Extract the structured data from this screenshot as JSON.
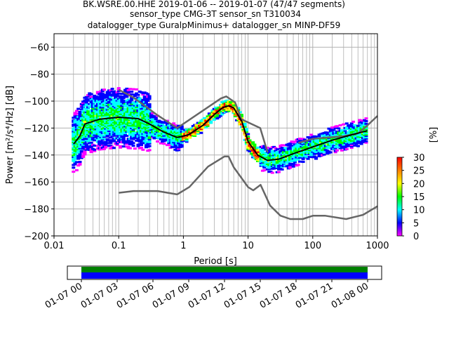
{
  "chart_data": {
    "type": "heatmap",
    "title_lines": [
      "BK.WSRE.00.HHE   2019-01-06 -- 2019-01-07  (47/47 segments)",
      "sensor_type CMG-3T sensor_sn T310034",
      "datalogger_type GuralpMinimus+ datalogger_sn MINP-DF59"
    ],
    "xlabel": "Period [s]",
    "ylabel": "Power [m²/s⁴/Hz] [dB]",
    "xscale": "log",
    "xlim": [
      0.01,
      1000
    ],
    "ylim": [
      -200,
      -50
    ],
    "x_tick_labels": [
      "0.01",
      "0.1",
      "1",
      "10",
      "100",
      "1000"
    ],
    "y_tick_labels": [
      "−200",
      "−180",
      "−160",
      "−140",
      "−120",
      "−100",
      "−80",
      "−60"
    ],
    "grid": true,
    "colorbar": {
      "label": "[%]",
      "range": [
        0,
        30
      ],
      "tick_labels": [
        "0",
        "5",
        "10",
        "15",
        "20",
        "25",
        "30"
      ],
      "colors": [
        "#ff00ff",
        "#0000ff",
        "#00ffff",
        "#00ff00",
        "#ffff00",
        "#ff7f00",
        "#ff0000"
      ]
    },
    "series": [
      {
        "name": "",
        "role": "noise-model-high",
        "color": "#666666",
        "x": [
          0.1,
          0.17,
          0.4,
          0.8,
          3.8,
          4.6,
          6.3,
          7.9,
          15.4,
          20
        ],
        "y": [
          -91.5,
          -97.4,
          -110.5,
          -120,
          -98,
          -96.5,
          -101,
          -113.5,
          -120,
          -138
        ]
      },
      {
        "name": "",
        "role": "noise-model-high-longperiod",
        "color": "#666666",
        "x": [
          60,
          100,
          300,
          500,
          700,
          1000
        ],
        "y": [
          -131,
          -128,
          -126,
          -124,
          -118,
          -111
        ]
      },
      {
        "name": "",
        "role": "noise-model-low",
        "color": "#666666",
        "x": [
          0.1,
          0.17,
          0.4,
          0.8,
          1.24,
          2.4,
          4.3,
          5.0,
          6.0,
          10,
          12,
          15.6,
          21.9,
          31.6,
          45,
          70,
          101,
          154,
          328,
          600,
          1000
        ],
        "y": [
          -168,
          -166.7,
          -166.7,
          -169.2,
          -163.7,
          -148.6,
          -141.1,
          -141.1,
          -149,
          -163.8,
          -166.2,
          -162.1,
          -177.5,
          -185,
          -187.5,
          -187.5,
          -185,
          -185,
          -187.5,
          -184.4,
          -178
        ]
      },
      {
        "name": "",
        "role": "mode",
        "color": "#000000",
        "x": [
          0.02,
          0.025,
          0.03,
          0.05,
          0.1,
          0.2,
          0.3,
          0.5,
          0.8,
          1.2,
          2,
          3,
          4,
          5,
          6,
          8,
          10,
          14,
          20,
          30,
          50,
          100,
          200,
          400,
          700
        ],
        "y": [
          -132,
          -126,
          -117,
          -113.5,
          -112,
          -113,
          -117,
          -123,
          -127,
          -125,
          -118,
          -110,
          -105,
          -103.5,
          -105,
          -115,
          -130,
          -140,
          -144,
          -143,
          -139,
          -134,
          -129,
          -125,
          -122
        ]
      }
    ],
    "density_scatter_note": "probabilistic PSD histogram cells",
    "time_axis": {
      "tick_labels": [
        "01-07 00",
        "01-07 03",
        "01-07 06",
        "01-07 09",
        "01-07 12",
        "01-07 15",
        "01-07 18",
        "01-07 21",
        "01-08 00"
      ],
      "coverage_colors": [
        "#008000",
        "#0000ff"
      ]
    }
  }
}
